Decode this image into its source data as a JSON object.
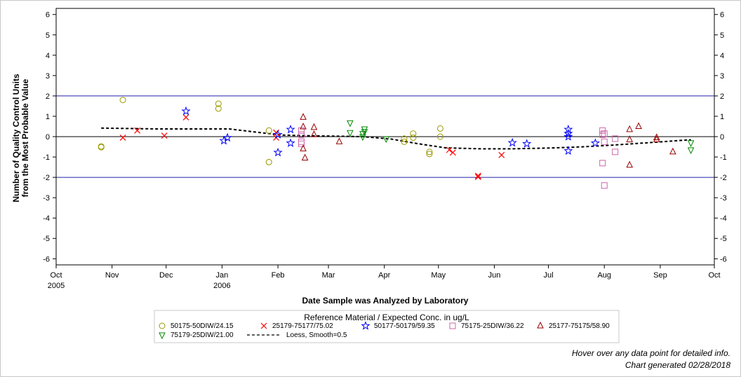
{
  "chart_data": {
    "type": "scatter",
    "xlabel": "Date Sample was Analyzed by Laboratory",
    "ylabel_lines": [
      "Number of Quality Control Units",
      "from the Most Probable Value"
    ],
    "ylim": [
      -6.3,
      6.3
    ],
    "y_ticks": [
      -6,
      -5,
      -4,
      -3,
      -2,
      -1,
      0,
      1,
      2,
      3,
      4,
      5,
      6
    ],
    "xlim": [
      "2005-10-01",
      "2005-10-01"
    ],
    "x_ticks": [
      {
        "date": "2005-10-01",
        "label": "Oct",
        "year": "2005"
      },
      {
        "date": "2005-11-01",
        "label": "Nov",
        "year": ""
      },
      {
        "date": "2005-12-01",
        "label": "Dec",
        "year": ""
      },
      {
        "date": "2006-01-01",
        "label": "Jan",
        "year": "2006"
      },
      {
        "date": "2006-02-01",
        "label": "Feb",
        "year": ""
      },
      {
        "date": "2006-03-01",
        "label": "Mar",
        "year": ""
      },
      {
        "date": "2006-04-01",
        "label": "Apr",
        "year": ""
      },
      {
        "date": "2006-05-01",
        "label": "May",
        "year": ""
      },
      {
        "date": "2006-06-01",
        "label": "Jun",
        "year": ""
      },
      {
        "date": "2006-07-01",
        "label": "Jul",
        "year": ""
      },
      {
        "date": "2006-08-01",
        "label": "Aug",
        "year": ""
      },
      {
        "date": "2006-09-01",
        "label": "Sep",
        "year": ""
      },
      {
        "date": "2006-10-01",
        "label": "Oct",
        "year": ""
      }
    ],
    "reference_lines": [
      {
        "y": 2,
        "color": "#2222aa"
      },
      {
        "y": 0,
        "color": "#000000"
      },
      {
        "y": -2,
        "color": "#2222aa"
      }
    ],
    "legend_title": "Reference Material / Expected Conc. in ug/L",
    "series": [
      {
        "name": "50175-50DIW/24.15",
        "marker": "circle",
        "color": "#9a9a00",
        "points": [
          [
            "2005-10-26",
            -0.48
          ],
          [
            "2005-10-26",
            -0.52
          ],
          [
            "2005-11-07",
            1.8
          ],
          [
            "2005-12-30",
            1.62
          ],
          [
            "2005-12-30",
            1.38
          ],
          [
            "2006-01-27",
            0.3
          ],
          [
            "2006-01-27",
            -1.25
          ],
          [
            "2006-04-12",
            -0.1
          ],
          [
            "2006-04-12",
            -0.25
          ],
          [
            "2006-04-17",
            0.15
          ],
          [
            "2006-04-17",
            -0.05
          ],
          [
            "2006-04-26",
            -0.75
          ],
          [
            "2006-04-26",
            -0.85
          ],
          [
            "2006-05-02",
            0.4
          ],
          [
            "2006-05-02",
            0.0
          ]
        ]
      },
      {
        "name": "25179-75177/75.02",
        "marker": "x",
        "color": "#ff0000",
        "points": [
          [
            "2005-11-07",
            -0.05
          ],
          [
            "2005-11-15",
            0.3
          ],
          [
            "2005-11-30",
            0.05
          ],
          [
            "2005-12-12",
            0.95
          ],
          [
            "2006-01-31",
            0.2
          ],
          [
            "2006-01-31",
            -0.05
          ],
          [
            "2006-05-07",
            -0.65
          ],
          [
            "2006-05-09",
            -0.78
          ],
          [
            "2006-05-23",
            -1.92
          ],
          [
            "2006-05-23",
            -1.98
          ],
          [
            "2006-06-05",
            -0.9
          ]
        ]
      },
      {
        "name": "50177-50179/59.35",
        "marker": "star",
        "color": "#0000ff",
        "points": [
          [
            "2005-12-12",
            1.25
          ],
          [
            "2006-01-02",
            -0.2
          ],
          [
            "2006-01-04",
            -0.05
          ],
          [
            "2006-02-01",
            0.1
          ],
          [
            "2006-02-01",
            -0.78
          ],
          [
            "2006-02-08",
            0.35
          ],
          [
            "2006-02-08",
            -0.32
          ],
          [
            "2006-06-11",
            -0.3
          ],
          [
            "2006-06-19",
            -0.35
          ],
          [
            "2006-07-12",
            0.35
          ],
          [
            "2006-07-12",
            0.15
          ],
          [
            "2006-07-12",
            0.0
          ],
          [
            "2006-07-12",
            -0.7
          ],
          [
            "2006-07-27",
            -0.32
          ]
        ]
      },
      {
        "name": "75175-25DIW/36.22",
        "marker": "square",
        "color": "#cc66aa",
        "points": [
          [
            "2006-02-14",
            0.3
          ],
          [
            "2006-02-14",
            0.1
          ],
          [
            "2006-02-14",
            -0.25
          ],
          [
            "2006-02-14",
            -0.35
          ],
          [
            "2006-07-31",
            0.3
          ],
          [
            "2006-07-31",
            0.1
          ],
          [
            "2006-07-31",
            -1.3
          ],
          [
            "2006-08-01",
            -2.4
          ],
          [
            "2006-08-01",
            0.15
          ],
          [
            "2006-08-01",
            -0.25
          ],
          [
            "2006-08-07",
            -0.1
          ],
          [
            "2006-08-07",
            -0.75
          ]
        ]
      },
      {
        "name": "25177-75175/58.90",
        "marker": "triangle",
        "color": "#990000",
        "points": [
          [
            "2006-02-15",
            0.95
          ],
          [
            "2006-02-15",
            0.48
          ],
          [
            "2006-02-15",
            -0.6
          ],
          [
            "2006-02-16",
            -1.05
          ],
          [
            "2006-02-21",
            0.45
          ],
          [
            "2006-02-21",
            0.1
          ],
          [
            "2006-03-07",
            -0.25
          ],
          [
            "2006-08-15",
            0.35
          ],
          [
            "2006-08-15",
            -0.15
          ],
          [
            "2006-08-15",
            -1.4
          ],
          [
            "2006-08-20",
            0.5
          ],
          [
            "2006-08-30",
            -0.05
          ],
          [
            "2006-08-30",
            -0.15
          ],
          [
            "2006-09-08",
            -0.75
          ]
        ]
      },
      {
        "name": "75179-25DIW/21.00",
        "marker": "triangle-down",
        "color": "#008800",
        "points": [
          [
            "2006-03-13",
            0.68
          ],
          [
            "2006-03-13",
            0.2
          ],
          [
            "2006-03-20",
            0.15
          ],
          [
            "2006-03-20",
            0.0
          ],
          [
            "2006-03-21",
            0.38
          ],
          [
            "2006-03-21",
            0.25
          ],
          [
            "2006-04-02",
            -0.1
          ],
          [
            "2006-09-18",
            -0.3
          ],
          [
            "2006-09-18",
            -0.65
          ]
        ]
      }
    ],
    "smooth": {
      "name": "Loess, Smooth=0.5",
      "color": "#000000",
      "dash": true,
      "points": [
        [
          "2005-10-26",
          0.42
        ],
        [
          "2005-11-26",
          0.38
        ],
        [
          "2005-12-26",
          0.38
        ],
        [
          "2006-01-05",
          0.38
        ],
        [
          "2006-01-20",
          0.22
        ],
        [
          "2006-02-03",
          0.08
        ],
        [
          "2006-02-20",
          0.04
        ],
        [
          "2006-03-07",
          0.02
        ],
        [
          "2006-03-20",
          0.0
        ],
        [
          "2006-04-05",
          -0.12
        ],
        [
          "2006-04-20",
          -0.35
        ],
        [
          "2006-05-05",
          -0.55
        ],
        [
          "2006-05-25",
          -0.6
        ],
        [
          "2006-06-10",
          -0.6
        ],
        [
          "2006-07-01",
          -0.56
        ],
        [
          "2006-07-20",
          -0.5
        ],
        [
          "2006-08-05",
          -0.42
        ],
        [
          "2006-08-25",
          -0.3
        ],
        [
          "2006-09-18",
          -0.15
        ]
      ]
    }
  },
  "footer": {
    "hover_note": "Hover over any data point for detailed info.",
    "generated": "Chart generated 02/28/2018"
  }
}
